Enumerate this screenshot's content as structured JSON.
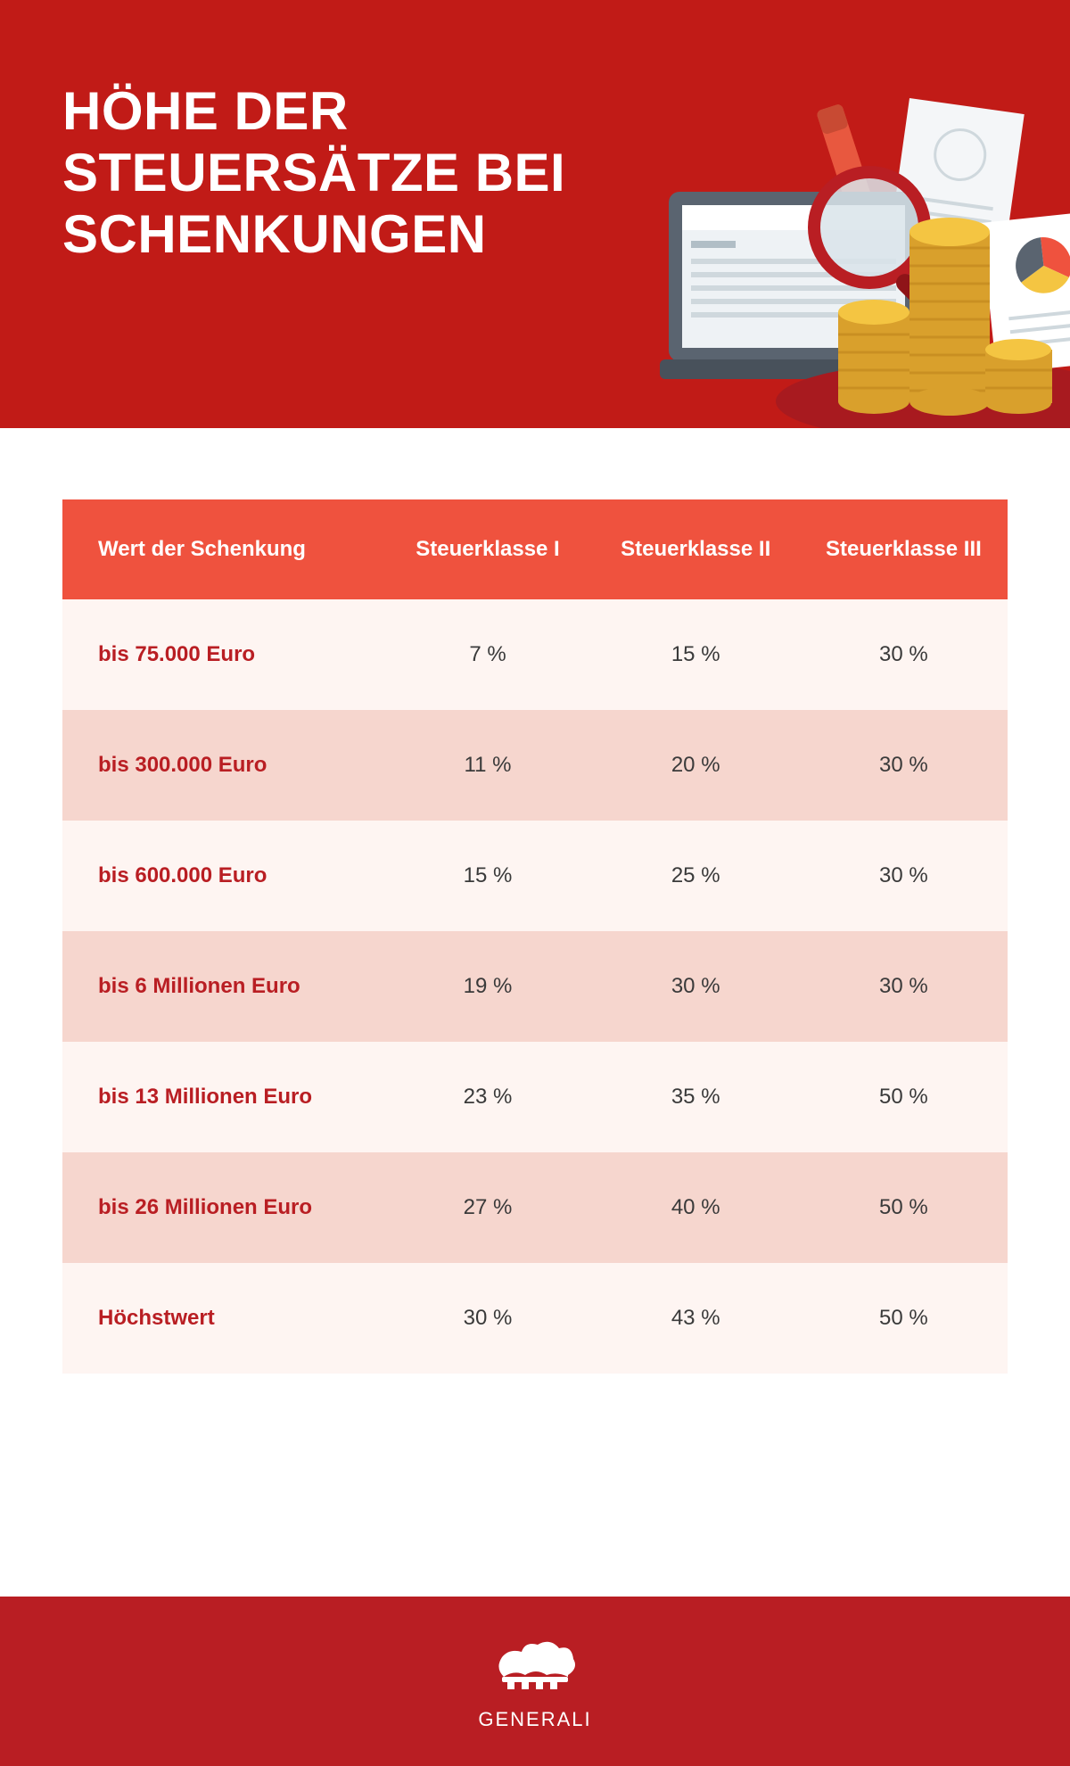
{
  "colors": {
    "brand_red": "#b91e23",
    "header_red": "#c11b17",
    "table_header_bg": "#ef523e",
    "row_odd_bg": "#fef5f2",
    "row_even_bg": "#f6d6ce",
    "text_dark": "#3a3a3a",
    "text_row_label": "#b91e23",
    "white": "#ffffff",
    "laptop_gray": "#5a6470",
    "screen_bg": "#eef2f5",
    "coin_gold": "#f4c542",
    "coin_gold_dark": "#d9a02c",
    "paper_bg": "#f4f6f8",
    "marker_red": "#e8583f",
    "marker_cap": "#c84a33",
    "lens_ring": "#b91e23",
    "lens_glass": "#d9e4ea",
    "pie1": "#ef523e",
    "pie2": "#f4c542",
    "pie3": "#5a6470",
    "mat_red": "#a81a1f"
  },
  "header": {
    "title_line1": "HÖHE DER",
    "title_line2": "STEUERSÄTZE BEI",
    "title_line3": "SCHENKUNGEN",
    "title_fontsize": 60
  },
  "table": {
    "columns": [
      "Wert der Schenkung",
      "Steuerklasse I",
      "Steuerklasse II",
      "Steuerklasse III"
    ],
    "rows": [
      [
        "bis 75.000 Euro",
        "7 %",
        "15 %",
        "30 %"
      ],
      [
        "bis 300.000 Euro",
        "11 %",
        "20 %",
        "30 %"
      ],
      [
        "bis 600.000 Euro",
        "15 %",
        "25 %",
        "30 %"
      ],
      [
        "bis 6 Millionen Euro",
        "19 %",
        "30 %",
        "30 %"
      ],
      [
        "bis 13 Millionen Euro",
        "23 %",
        "35 %",
        "50 %"
      ],
      [
        "bis 26 Millionen Euro",
        "27 %",
        "40 %",
        "50 %"
      ],
      [
        "Höchstwert",
        "30 %",
        "43 %",
        "50 %"
      ]
    ],
    "col_widths_pct": [
      34,
      22,
      22,
      22
    ],
    "header_fontsize": 24,
    "cell_fontsize": 24
  },
  "footer": {
    "brand": "GENERALI"
  }
}
